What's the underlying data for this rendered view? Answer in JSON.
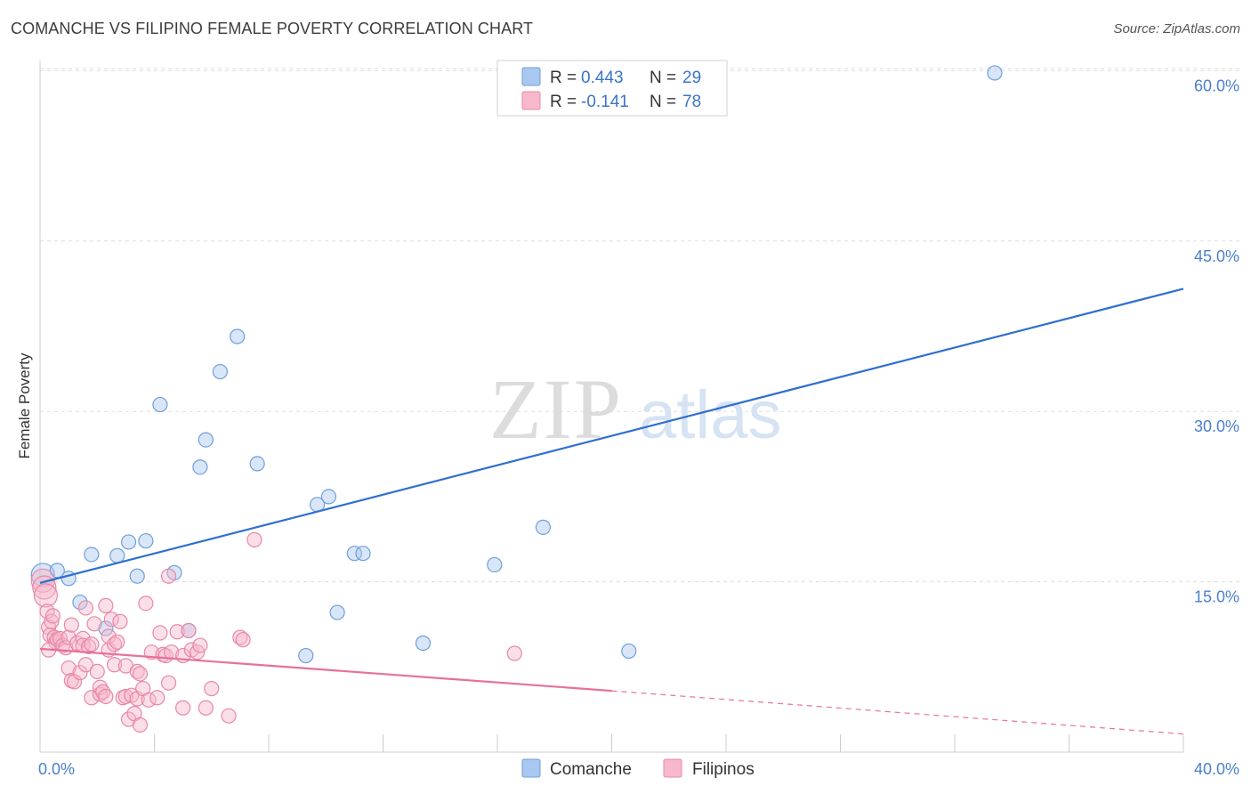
{
  "title": "COMANCHE VS FILIPINO FEMALE POVERTY CORRELATION CHART",
  "source": "Source: ZipAtlas.com",
  "watermark": {
    "zip": "ZIP",
    "atlas": "atlas"
  },
  "legend": {
    "rows": [
      {
        "r_label": "R =",
        "r_value": "0.443",
        "n_label": "N =",
        "n_value": "29",
        "color": "#a9c8f0",
        "stroke": "#6f9edb"
      },
      {
        "r_label": "R =",
        "r_value": "-0.141",
        "n_label": "N =",
        "n_value": "78",
        "color": "#f7b8cb",
        "stroke": "#e888a6"
      }
    ]
  },
  "bottom_legend": [
    {
      "label": "Comanche",
      "color": "#a9c8f0",
      "stroke": "#6f9edb"
    },
    {
      "label": "Filipinos",
      "color": "#f7b8cb",
      "stroke": "#e888a6"
    }
  ],
  "chart_data": {
    "type": "scatter",
    "title": "COMANCHE VS FILIPINO FEMALE POVERTY CORRELATION CHART",
    "xlabel": "",
    "ylabel": "Female Poverty",
    "xlim": [
      0,
      40
    ],
    "ylim": [
      0,
      62
    ],
    "x_tick_labels": [
      {
        "value": 0,
        "label": "0.0%"
      },
      {
        "value": 40,
        "label": "40.0%"
      }
    ],
    "y_tick_labels": [
      {
        "value": 15,
        "label": "15.0%"
      },
      {
        "value": 30,
        "label": "30.0%"
      },
      {
        "value": 45,
        "label": "45.0%"
      },
      {
        "value": 60,
        "label": "60.0%"
      }
    ],
    "grid": true,
    "legend_position": "top-center",
    "series": [
      {
        "name": "Comanche",
        "color": "#a9c8f0",
        "stroke": "#6f9edb",
        "points": [
          [
            0.1,
            15.6
          ],
          [
            0.6,
            16.0
          ],
          [
            1.0,
            15.3
          ],
          [
            1.4,
            13.2
          ],
          [
            1.8,
            17.4
          ],
          [
            2.3,
            10.9
          ],
          [
            2.7,
            17.3
          ],
          [
            3.1,
            18.5
          ],
          [
            3.4,
            15.5
          ],
          [
            3.7,
            18.6
          ],
          [
            4.2,
            30.6
          ],
          [
            4.7,
            15.8
          ],
          [
            5.2,
            10.7
          ],
          [
            5.6,
            25.1
          ],
          [
            5.8,
            27.5
          ],
          [
            6.3,
            33.5
          ],
          [
            6.9,
            36.6
          ],
          [
            7.6,
            25.4
          ],
          [
            9.3,
            8.5
          ],
          [
            9.7,
            21.8
          ],
          [
            10.1,
            22.5
          ],
          [
            10.4,
            12.3
          ],
          [
            11.0,
            17.5
          ],
          [
            11.3,
            17.5
          ],
          [
            13.4,
            9.6
          ],
          [
            15.9,
            16.5
          ],
          [
            17.6,
            19.8
          ],
          [
            20.6,
            8.9
          ],
          [
            33.4,
            59.8
          ]
        ],
        "trend": {
          "x": [
            0,
            40
          ],
          "y": [
            14.9,
            40.8
          ],
          "style": "solid"
        }
      },
      {
        "name": "Filipinos",
        "color": "#f7b8cb",
        "stroke": "#e888a6",
        "points": [
          [
            0.1,
            15.1
          ],
          [
            0.15,
            14.5
          ],
          [
            0.2,
            13.8
          ],
          [
            0.25,
            12.4
          ],
          [
            0.3,
            11.0
          ],
          [
            0.35,
            10.3
          ],
          [
            0.4,
            11.5
          ],
          [
            0.5,
            10.1
          ],
          [
            0.55,
            9.7
          ],
          [
            0.6,
            9.9
          ],
          [
            0.7,
            10.0
          ],
          [
            0.8,
            9.4
          ],
          [
            0.9,
            9.2
          ],
          [
            1.0,
            10.1
          ],
          [
            1.0,
            7.4
          ],
          [
            1.1,
            11.2
          ],
          [
            1.1,
            6.3
          ],
          [
            1.2,
            6.2
          ],
          [
            1.3,
            9.6
          ],
          [
            1.4,
            7.0
          ],
          [
            1.5,
            10.0
          ],
          [
            1.5,
            9.4
          ],
          [
            1.6,
            7.7
          ],
          [
            1.6,
            12.7
          ],
          [
            1.7,
            9.3
          ],
          [
            1.8,
            4.8
          ],
          [
            1.8,
            9.5
          ],
          [
            1.9,
            11.3
          ],
          [
            2.0,
            7.1
          ],
          [
            2.1,
            5.1
          ],
          [
            2.1,
            5.7
          ],
          [
            2.2,
            5.3
          ],
          [
            2.3,
            12.9
          ],
          [
            2.3,
            4.9
          ],
          [
            2.4,
            9.0
          ],
          [
            2.4,
            10.2
          ],
          [
            2.5,
            11.7
          ],
          [
            2.6,
            7.7
          ],
          [
            2.6,
            9.5
          ],
          [
            2.7,
            9.7
          ],
          [
            2.8,
            11.5
          ],
          [
            2.9,
            4.8
          ],
          [
            3.0,
            4.9
          ],
          [
            3.0,
            7.6
          ],
          [
            3.1,
            2.9
          ],
          [
            3.2,
            5.0
          ],
          [
            3.3,
            3.4
          ],
          [
            3.4,
            4.7
          ],
          [
            3.4,
            7.1
          ],
          [
            3.5,
            2.4
          ],
          [
            3.5,
            6.9
          ],
          [
            3.6,
            5.6
          ],
          [
            3.7,
            13.1
          ],
          [
            3.8,
            4.6
          ],
          [
            3.9,
            8.8
          ],
          [
            4.1,
            4.8
          ],
          [
            4.2,
            10.5
          ],
          [
            4.3,
            8.6
          ],
          [
            4.4,
            8.5
          ],
          [
            4.5,
            15.5
          ],
          [
            4.5,
            6.1
          ],
          [
            4.6,
            8.8
          ],
          [
            4.8,
            10.6
          ],
          [
            5.0,
            3.9
          ],
          [
            5.0,
            8.5
          ],
          [
            5.2,
            10.7
          ],
          [
            5.3,
            9.0
          ],
          [
            5.5,
            8.8
          ],
          [
            5.6,
            9.4
          ],
          [
            5.8,
            3.9
          ],
          [
            6.0,
            5.6
          ],
          [
            6.6,
            3.2
          ],
          [
            7.0,
            10.1
          ],
          [
            7.1,
            9.9
          ],
          [
            7.5,
            18.7
          ],
          [
            16.6,
            8.7
          ],
          [
            0.3,
            9.0
          ],
          [
            0.45,
            12.0
          ]
        ],
        "trend": {
          "x": [
            0,
            20
          ],
          "y": [
            9.1,
            5.4
          ],
          "style": "solid"
        },
        "trend_extension": {
          "x": [
            20,
            40
          ],
          "y": [
            5.4,
            1.6
          ],
          "style": "dashed"
        }
      }
    ]
  }
}
